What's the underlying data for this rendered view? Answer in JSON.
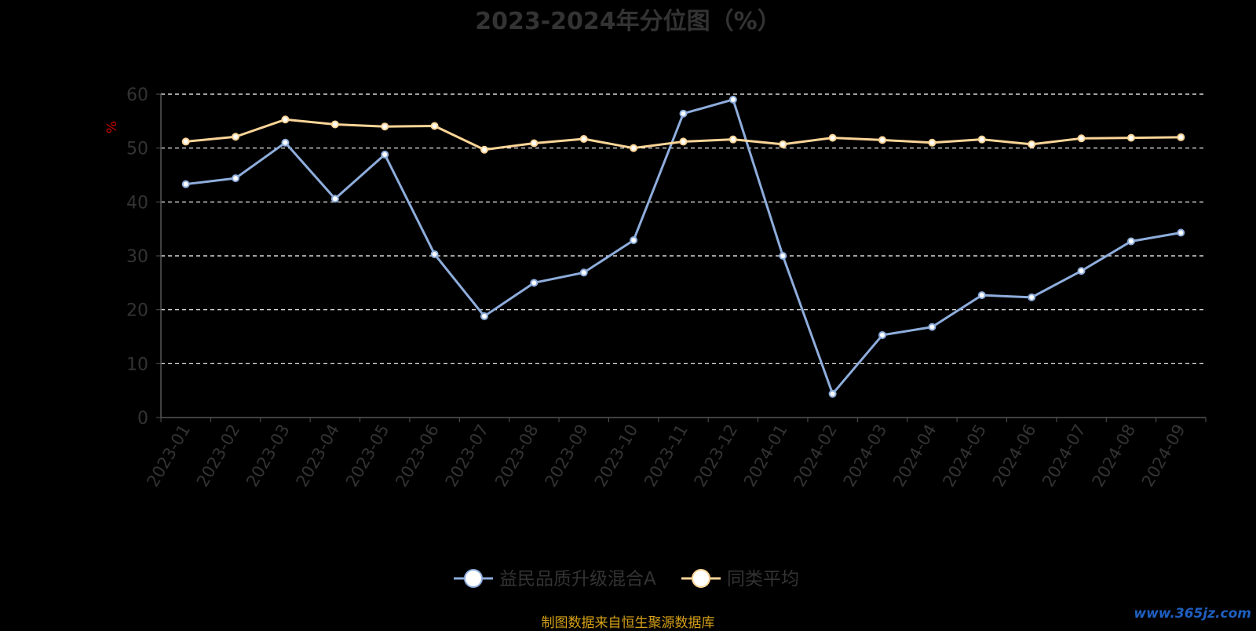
{
  "chart_data": {
    "type": "line",
    "title": "2023-2024年分位图（%）",
    "ylabel": "%",
    "ylim": [
      0,
      60
    ],
    "yticks": [
      0,
      10,
      20,
      30,
      40,
      50,
      60
    ],
    "grid": true,
    "legend_position": "bottom",
    "categories": [
      "2023-01",
      "2023-02",
      "2023-03",
      "2023-04",
      "2023-05",
      "2023-06",
      "2023-07",
      "2023-08",
      "2023-09",
      "2023-10",
      "2023-11",
      "2023-12",
      "2024-01",
      "2024-02",
      "2024-03",
      "2024-04",
      "2024-05",
      "2024-06",
      "2024-07",
      "2024-08",
      "2024-09"
    ],
    "series": [
      {
        "name": "益民品质升级混合A",
        "color": "#8eaddc",
        "values": [
          43.3,
          44.4,
          51.0,
          40.6,
          48.8,
          30.3,
          18.8,
          25.0,
          26.9,
          32.9,
          56.4,
          59.0,
          30.0,
          4.4,
          15.3,
          16.8,
          22.7,
          22.3,
          27.2,
          32.7,
          34.3
        ]
      },
      {
        "name": "同类平均",
        "color": "#fbd597",
        "values": [
          51.2,
          52.1,
          55.3,
          54.4,
          54.0,
          54.1,
          49.7,
          50.9,
          51.7,
          50.0,
          51.2,
          51.6,
          50.7,
          51.9,
          51.5,
          51.0,
          51.6,
          50.7,
          51.8,
          51.9,
          52.0
        ]
      }
    ]
  },
  "footer": {
    "source": "制图数据来自恒生聚源数据库",
    "watermark": "www.365jz.com"
  },
  "colors": {
    "background": "#000000",
    "title": "#333333",
    "axis": "#555555",
    "grid": "#ffffff",
    "ylabel": "#cc0000",
    "source": "#d4a017"
  }
}
